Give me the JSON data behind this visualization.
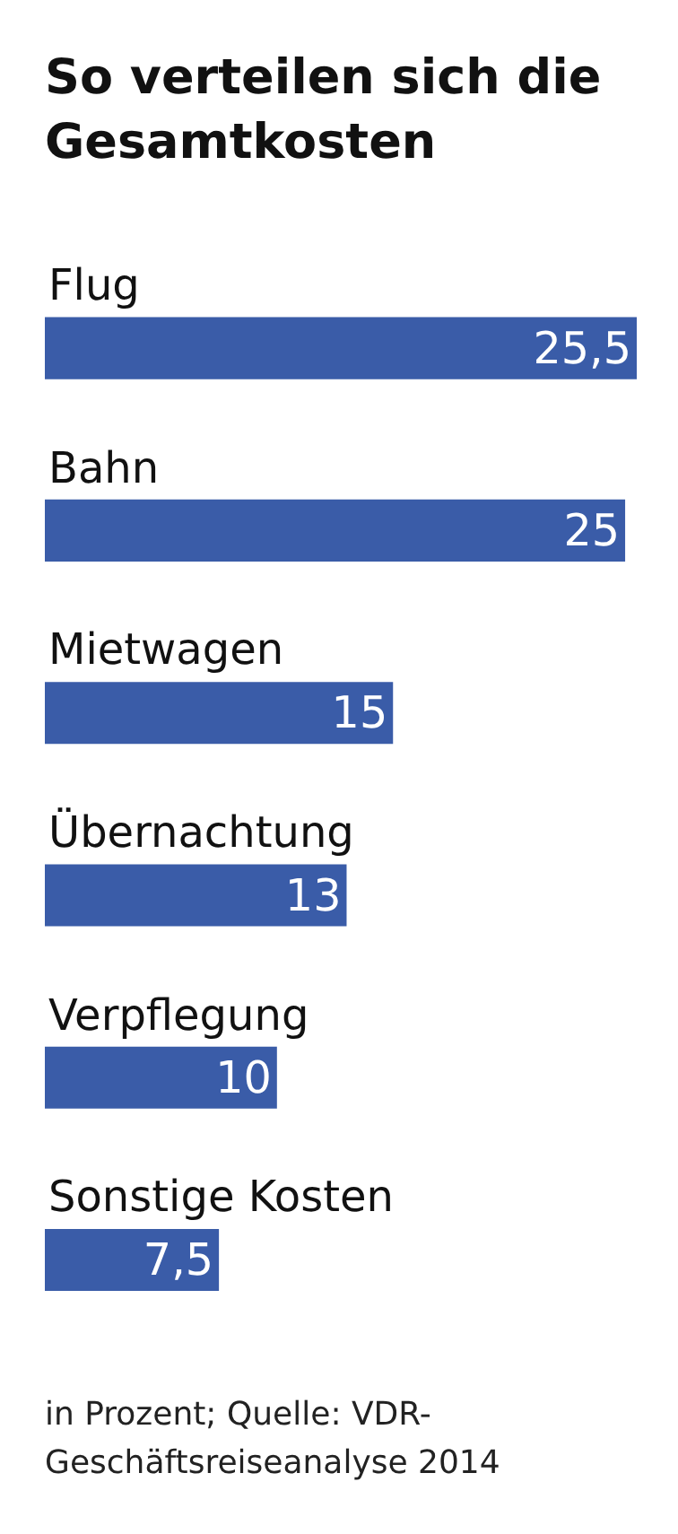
{
  "chart_data": {
    "type": "bar",
    "orientation": "horizontal",
    "title": "So verteilen sich die Gesamtkosten",
    "categories": [
      "Flug",
      "Bahn",
      "Mietwagen",
      "Übernachtung",
      "Verpflegung",
      "Sonstige Kosten"
    ],
    "values": [
      25.5,
      25,
      15,
      13,
      10,
      7.5
    ],
    "value_labels": [
      "25,5",
      "25",
      "15",
      "13",
      "10",
      "7,5"
    ],
    "color": "#3a5ca8",
    "grid": false,
    "legend": false,
    "annotations": [
      "in Prozent; Quelle: VDR-Geschäftsreiseanalyse 2014"
    ]
  }
}
